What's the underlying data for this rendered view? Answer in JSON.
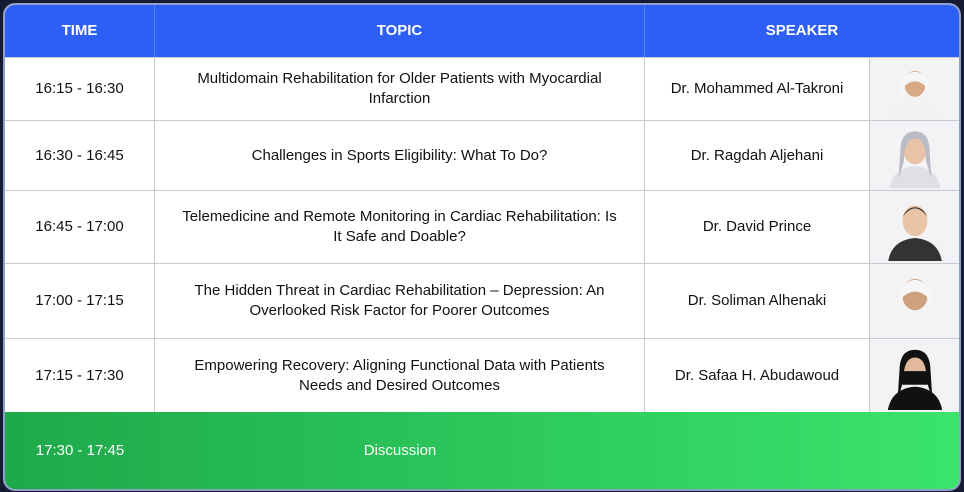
{
  "table": {
    "header": [
      "TIME",
      "TOPIC",
      "SPEAKER"
    ],
    "rows": [
      [
        "16:15 - 16:30",
        "Multidomain Rehabilitation for Older Patients with Myocardial Infarction",
        "Dr. Mohammed Al-Takroni"
      ],
      [
        "16:30 - 16:45",
        "Challenges in Sports Eligibility: What To Do?",
        "Dr. Ragdah Aljehani"
      ],
      [
        "16:45 - 17:00",
        "Telemedicine and Remote Monitoring in Cardiac Rehabilitation: Is It Safe and Doable?",
        "Dr. David Prince"
      ],
      [
        "17:00 - 17:15",
        "The Hidden Threat in Cardiac Rehabilitation – Depression: An Overlooked Risk Factor for Poorer Outcomes",
        "Dr. Soliman Alhenaki"
      ],
      [
        "17:15 - 17:30",
        "Empowering Recovery: Aligning Functional Data with Patients Needs and Desired Outcomes",
        "Dr. Safaa H. Abudawoud"
      ]
    ],
    "footer_row": [
      "17:30 - 17:45",
      "Discussion"
    ]
  }
}
